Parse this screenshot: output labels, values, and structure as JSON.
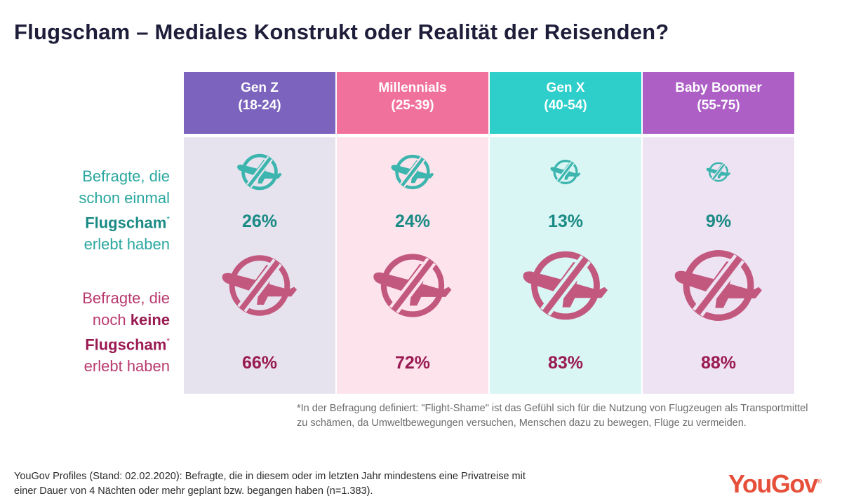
{
  "title": "Flugscham – Mediales Konstrukt oder Realität der Reisenden?",
  "chart_data": {
    "type": "table",
    "categories": [
      {
        "name": "Gen Z",
        "ages": "(18-24)",
        "header_color": "#7b63be",
        "cell_color": "#e6e3ee"
      },
      {
        "name": "Millennials",
        "ages": "(25-39)",
        "header_color": "#f0719c",
        "cell_color": "#fce3ec"
      },
      {
        "name": "Gen X",
        "ages": "(40-54)",
        "header_color": "#2ecfcb",
        "cell_color": "#d9f5f4"
      },
      {
        "name": "Baby Boomer",
        "ages": "(55-75)",
        "header_color": "#ad5fc6",
        "cell_color": "#eee3f3"
      }
    ],
    "series": [
      {
        "row": "experienced",
        "values": [
          26,
          24,
          13,
          9
        ],
        "labels": [
          "26%",
          "24%",
          "13%",
          "9%"
        ],
        "color": "#3bb5ad",
        "icon": "no-flight-icon"
      },
      {
        "row": "not_experienced",
        "values": [
          66,
          72,
          83,
          88
        ],
        "labels": [
          "66%",
          "72%",
          "83%",
          "88%"
        ],
        "color": "#c2587e",
        "icon": "no-flight-icon"
      }
    ],
    "row_labels": {
      "experienced": {
        "line1": "Befragte, die",
        "line2": "schon einmal",
        "bold": "Flugscham",
        "star": "*",
        "line4": "erlebt haben"
      },
      "not_experienced": {
        "line1": "Befragte, die",
        "line2_pre": "noch ",
        "line2_bold": "keine",
        "bold": "Flugscham",
        "star": "*",
        "line4": "erlebt haben"
      }
    }
  },
  "footnote": "*In der Befragung definiert: \"Flight-Shame\" ist das Gefühl sich für die Nutzung von Flugzeugen als Transportmittel zu schämen, da Umweltbewegungen versuchen, Menschen dazu zu bewegen, Flüge zu vermeiden.",
  "source": "YouGov Profiles (Stand: 02.02.2020): Befragte, die in diesem oder im letzten Jahr mindestens eine Privatreise mit einer Dauer von 4 Nächten oder mehr geplant bzw. begangen haben (n=1.383).",
  "logo": {
    "text": "YouGov",
    "mark": "®",
    "color": "#e6503b"
  }
}
